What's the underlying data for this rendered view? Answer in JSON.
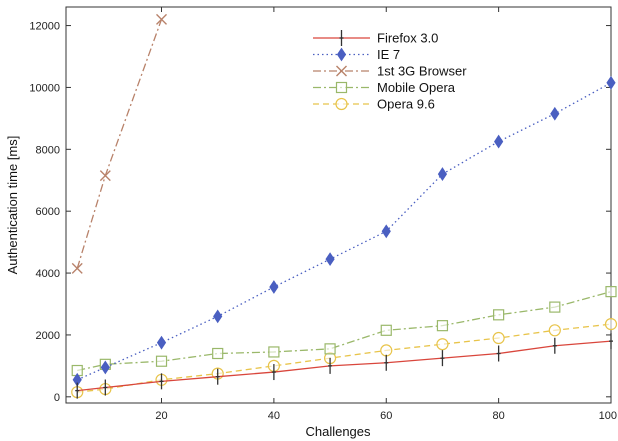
{
  "chart_data": {
    "type": "line",
    "title": "",
    "xlabel": "Challenges",
    "ylabel": "Authentication time [ms]",
    "xlim": [
      3,
      100
    ],
    "ylim": [
      -200,
      12600
    ],
    "xticks": [
      20,
      40,
      60,
      80,
      100
    ],
    "xtick_labels": [
      "20",
      "40",
      "60",
      "80",
      "100"
    ],
    "yticks": [
      0,
      2000,
      4000,
      6000,
      8000,
      10000,
      12000
    ],
    "ytick_labels": [
      "0",
      "2000",
      "4000",
      "6000",
      "8000",
      "10000",
      "12000"
    ],
    "grid": false,
    "legend_position": "top-right",
    "series": [
      {
        "name": "Firefox 3.0",
        "color": "#d9463c",
        "dash": "solid",
        "marker": "plus",
        "x": [
          5,
          10,
          20,
          30,
          40,
          50,
          60,
          70,
          80,
          90,
          100
        ],
        "y": [
          200,
          300,
          500,
          650,
          800,
          1000,
          1100,
          1250,
          1400,
          1650,
          1800
        ]
      },
      {
        "name": "IE 7",
        "color": "#4a5fc1",
        "dash": "dotted",
        "marker": "diamond",
        "x": [
          5,
          10,
          20,
          30,
          40,
          50,
          60,
          70,
          80,
          90,
          100
        ],
        "y": [
          550,
          950,
          1750,
          2600,
          3550,
          4450,
          5350,
          7200,
          8250,
          9150,
          10150
        ]
      },
      {
        "name": "1st 3G Browser",
        "color": "#b8826a",
        "dash": "dashdot",
        "marker": "x",
        "x": [
          5,
          10,
          20
        ],
        "y": [
          4150,
          7150,
          12200
        ]
      },
      {
        "name": "Mobile Opera",
        "color": "#9ab86a",
        "dash": "dashdot",
        "marker": "square",
        "x": [
          5,
          10,
          20,
          30,
          40,
          50,
          60,
          70,
          80,
          90,
          100
        ],
        "y": [
          850,
          1050,
          1150,
          1400,
          1450,
          1550,
          2150,
          2300,
          2650,
          2900,
          3400
        ]
      },
      {
        "name": "Opera 9.6",
        "color": "#e8c44a",
        "dash": "dashed",
        "marker": "circle",
        "x": [
          5,
          10,
          20,
          30,
          40,
          50,
          60,
          70,
          80,
          90,
          100
        ],
        "y": [
          150,
          250,
          550,
          750,
          1000,
          1250,
          1500,
          1700,
          1900,
          2150,
          2350
        ]
      }
    ]
  }
}
